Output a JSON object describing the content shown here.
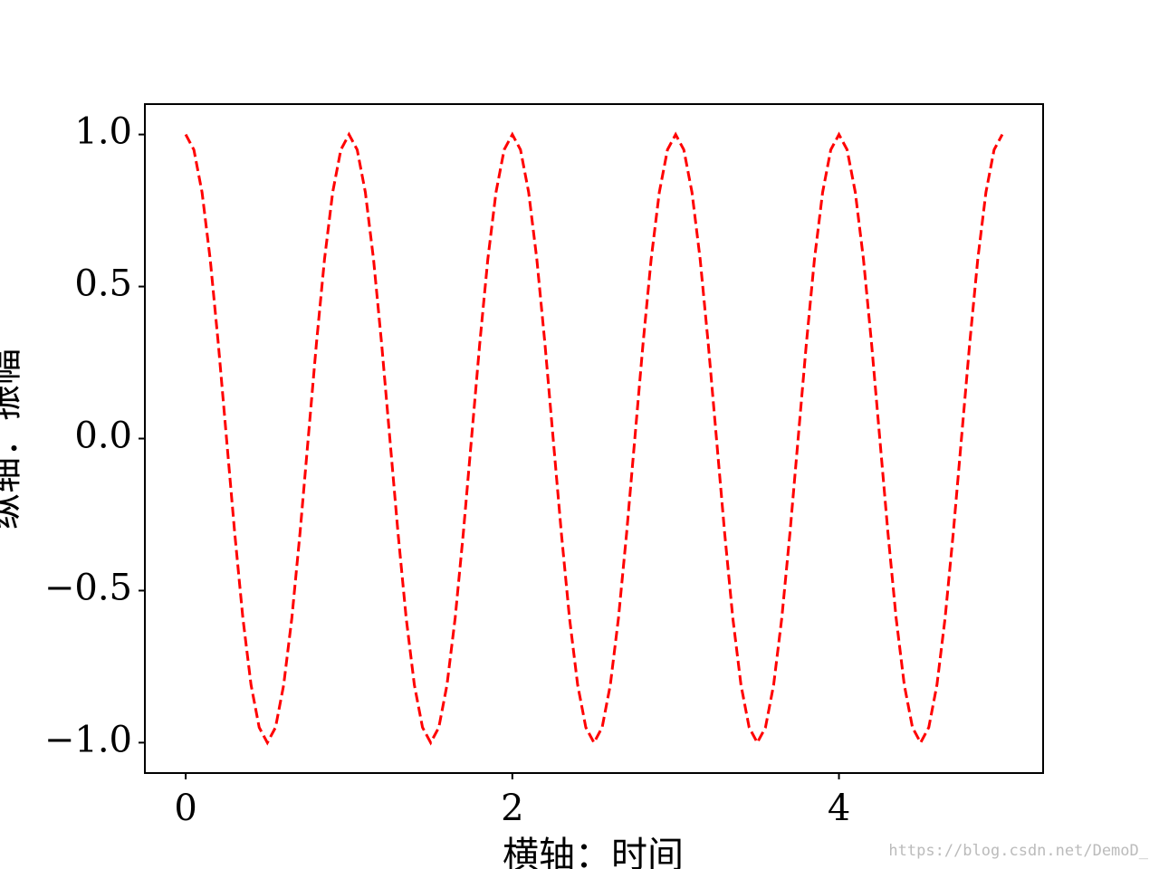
{
  "chart_data": {
    "type": "line",
    "xlabel": "横轴：时间",
    "ylabel": "纵轴：振幅",
    "color": "#ff0000",
    "linestyle": "dashed",
    "x": [
      0,
      0.05,
      0.1,
      0.15,
      0.2,
      0.25,
      0.3,
      0.35,
      0.4,
      0.45,
      0.5,
      0.55,
      0.6,
      0.65,
      0.7,
      0.75,
      0.8,
      0.85,
      0.9,
      0.95,
      1,
      1.05,
      1.1,
      1.15,
      1.2,
      1.25,
      1.3,
      1.35,
      1.4,
      1.45,
      1.5,
      1.55,
      1.6,
      1.65,
      1.7,
      1.75,
      1.8,
      1.85,
      1.9,
      1.95,
      2,
      2.05,
      2.1,
      2.15,
      2.2,
      2.25,
      2.3,
      2.35,
      2.4,
      2.45,
      2.5,
      2.55,
      2.6,
      2.65,
      2.7,
      2.75,
      2.8,
      2.85,
      2.9,
      2.95,
      3,
      3.05,
      3.1,
      3.15,
      3.2,
      3.25,
      3.3,
      3.35,
      3.4,
      3.45,
      3.5,
      3.55,
      3.6,
      3.65,
      3.7,
      3.75,
      3.8,
      3.85,
      3.9,
      3.95,
      4,
      4.05,
      4.1,
      4.15,
      4.2,
      4.25,
      4.3,
      4.35,
      4.4,
      4.45,
      4.5,
      4.55,
      4.6,
      4.65,
      4.7,
      4.75,
      4.8,
      4.85,
      4.9,
      4.95,
      5
    ],
    "values": [
      1,
      0.95,
      0.81,
      0.59,
      0.31,
      0,
      -0.31,
      -0.59,
      -0.81,
      -0.95,
      -1,
      -0.95,
      -0.81,
      -0.59,
      -0.31,
      0,
      0.31,
      0.59,
      0.81,
      0.95,
      1,
      0.95,
      0.81,
      0.59,
      0.31,
      0,
      -0.31,
      -0.59,
      -0.81,
      -0.95,
      -1,
      -0.95,
      -0.81,
      -0.59,
      -0.31,
      0,
      0.31,
      0.59,
      0.81,
      0.95,
      1,
      0.95,
      0.81,
      0.59,
      0.31,
      0,
      -0.31,
      -0.59,
      -0.81,
      -0.95,
      -1,
      -0.95,
      -0.81,
      -0.59,
      -0.31,
      0,
      0.31,
      0.59,
      0.81,
      0.95,
      1,
      0.95,
      0.81,
      0.59,
      0.31,
      0,
      -0.31,
      -0.59,
      -0.81,
      -0.95,
      -1,
      -0.95,
      -0.81,
      -0.59,
      -0.31,
      0,
      0.31,
      0.59,
      0.81,
      0.95,
      1,
      0.95,
      0.81,
      0.59,
      0.31,
      0,
      -0.31,
      -0.59,
      -0.81,
      -0.95,
      -1,
      -0.95,
      -0.81,
      -0.59,
      -0.31,
      0,
      0.31,
      0.59,
      0.81,
      0.95,
      1
    ],
    "xlim": [
      -0.25,
      5.25
    ],
    "xticks": [
      0,
      2,
      4
    ],
    "ylim": [
      -1.1,
      1.1
    ],
    "yticks": [
      {
        "value": -1,
        "label": "−1.0"
      },
      {
        "value": -0.5,
        "label": "−0.5"
      },
      {
        "value": 0,
        "label": "0.0"
      },
      0.5,
      {
        "value": 1,
        "label": "1.0"
      }
    ],
    "grid": false
  },
  "watermark": "https://blog.csdn.net/DemoD_"
}
